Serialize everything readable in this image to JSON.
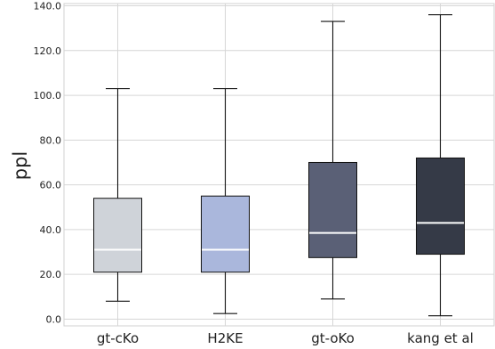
{
  "chart_data": {
    "type": "box",
    "ylabel": "ppl",
    "xlabel": "",
    "ylim": [
      -3,
      141
    ],
    "yticks": [
      0,
      20,
      40,
      60,
      80,
      100,
      120,
      140
    ],
    "ytick_labels": [
      "0.0",
      "20.0",
      "40.0",
      "60.0",
      "80.0",
      "100.0",
      "120.0",
      "140.0"
    ],
    "grid": true,
    "categories": [
      "gt-cKo",
      "H2KE",
      "gt-oKo",
      "kang et al"
    ],
    "boxes": [
      {
        "label": "gt-cKo",
        "whisker_low": 8,
        "q1": 21,
        "median": 31,
        "q3": 54,
        "whisker_high": 103,
        "color": "#cfd3d9"
      },
      {
        "label": "H2KE",
        "whisker_low": 2.5,
        "q1": 21,
        "median": 31,
        "q3": 55,
        "whisker_high": 103,
        "color": "#aab7dc"
      },
      {
        "label": "gt-oKo",
        "whisker_low": 9,
        "q1": 27.5,
        "median": 38.5,
        "q3": 70,
        "whisker_high": 133,
        "color": "#5a6076"
      },
      {
        "label": "kang et al",
        "whisker_low": 1.5,
        "q1": 29,
        "median": 43,
        "q3": 72,
        "whisker_high": 136,
        "color": "#353a47"
      }
    ]
  }
}
